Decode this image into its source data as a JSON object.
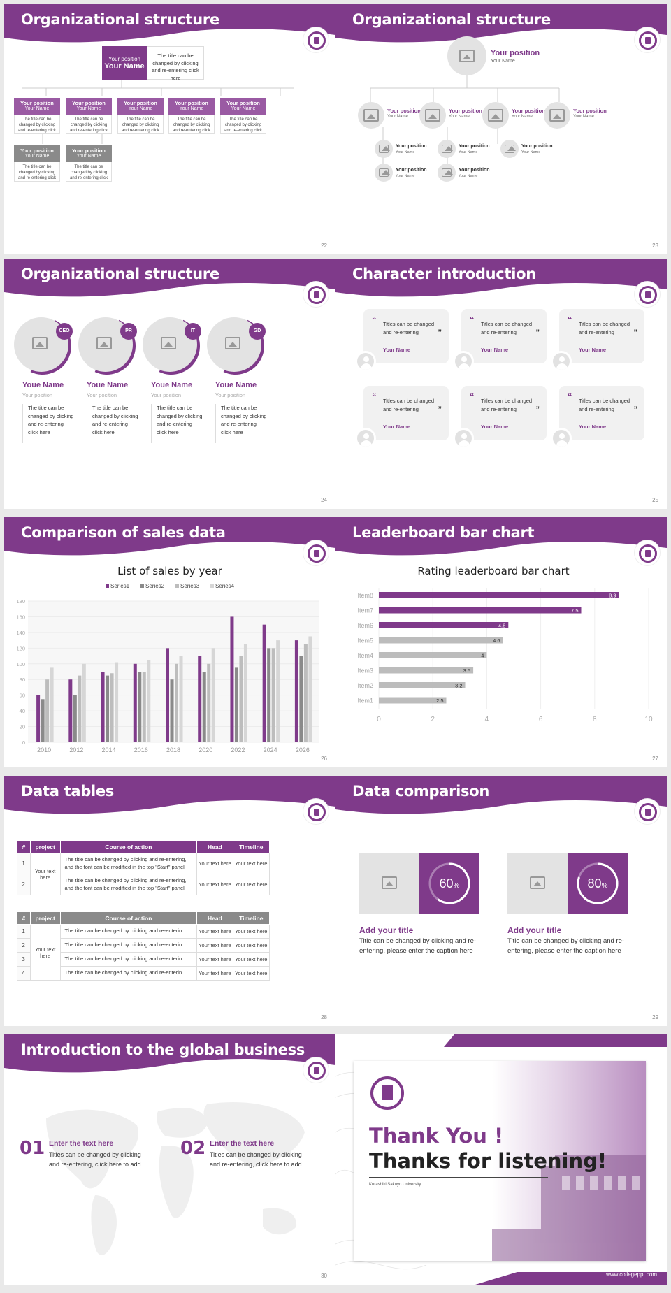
{
  "colors": {
    "primary": "#7f3a8a",
    "gray": "#8a8a8a",
    "light": "#e3e3e3"
  },
  "s22": {
    "title": "Organizational structure",
    "page": "22",
    "top": {
      "pos": "Your position",
      "name": "Your Name",
      "desc": "The title can be changed by clicking and re-entering click here"
    },
    "cards": [
      {
        "pos": "Your position",
        "name": "Your Name",
        "desc": "The title can be changed by clicking and re-entering click here"
      },
      {
        "pos": "Your position",
        "name": "Your Name",
        "desc": "The title can be changed by clicking and re-entering click here"
      },
      {
        "pos": "Your position",
        "name": "Your Name",
        "desc": "The title can be changed by clicking and re-entering click here"
      },
      {
        "pos": "Your position",
        "name": "Your Name",
        "desc": "The title can be changed by clicking and re-entering click here"
      },
      {
        "pos": "Your position",
        "name": "Your Name",
        "desc": "The title can be changed by clicking and re-entering click here"
      },
      {
        "pos": "Your position",
        "name": "Your Name",
        "desc": "The title can be changed by clicking and re-entering click here"
      },
      {
        "pos": "Your position",
        "name": "Your Name",
        "desc": "The title can be changed by clicking and re-entering click here"
      }
    ]
  },
  "s23": {
    "title": "Organizational structure",
    "page": "23",
    "top_pos": "Your position",
    "top_name": "Your Name",
    "pos": "Your position",
    "name": "Your Name"
  },
  "s24": {
    "title": "Organizational structure",
    "page": "24",
    "people": [
      {
        "tag": "CEO",
        "name": "Youe Name",
        "pos": "Your position",
        "desc": "The title can be changed by clicking and re-entering click here"
      },
      {
        "tag": "PR",
        "name": "Youe Name",
        "pos": "Your position",
        "desc": "The title can be changed by clicking and re-entering click here"
      },
      {
        "tag": "IT",
        "name": "Youe Name",
        "pos": "Your position",
        "desc": "The title can be changed by clicking and re-entering click here"
      },
      {
        "tag": "GD",
        "name": "Youe Name",
        "pos": "Your position",
        "desc": "The title can be changed by clicking and re-entering click here"
      }
    ]
  },
  "s25": {
    "title": "Character introduction",
    "page": "25",
    "quote": "Titles can be changed and re-entering",
    "name": "Your Name"
  },
  "s26": {
    "title": "Comparison of sales data",
    "page": "26"
  },
  "s27": {
    "title": "Leaderboard bar chart",
    "page": "27"
  },
  "s28": {
    "title": "Data tables",
    "page": "28",
    "t1": {
      "headers": [
        "#",
        "project",
        "Course of action",
        "Head",
        "Timeline"
      ],
      "merged": "Your text here",
      "rows": [
        {
          "n": "1",
          "c": "The title can be changed by clicking and re-entering, and the font can be modified in the top \"Start\" panel",
          "h": "Your text here",
          "t": "Your text here"
        },
        {
          "n": "2",
          "c": "The title can be changed by clicking and re-entering, and the font can be modified in the top \"Start\" panel",
          "h": "Your text here",
          "t": "Your text here"
        }
      ]
    },
    "t2": {
      "headers": [
        "#",
        "project",
        "Course of action",
        "Head",
        "Timeline"
      ],
      "merged": "Your text here",
      "rows": [
        {
          "n": "1",
          "c": "The title can be changed by clicking and re-enterin",
          "h": "Your text here",
          "t": "Your text here"
        },
        {
          "n": "2",
          "c": "The title can be changed by clicking and re-enterin",
          "h": "Your text here",
          "t": "Your text here"
        },
        {
          "n": "3",
          "c": "The title can be changed by clicking and re-enterin",
          "h": "Your text here",
          "t": "Your text here"
        },
        {
          "n": "4",
          "c": "The title can be changed by clicking and re-enterin",
          "h": "Your text here",
          "t": "Your text here"
        }
      ]
    }
  },
  "s29": {
    "title": "Data comparison",
    "page": "29",
    "items": [
      {
        "pct": "60",
        "unit": "%",
        "value": 60,
        "title": "Add your title",
        "desc": "Title can be changed by clicking and re-entering, please enter the caption here"
      },
      {
        "pct": "80",
        "unit": "%",
        "value": 80,
        "title": "Add your title",
        "desc": "Title can be changed by clicking and re-entering, please enter the caption here"
      }
    ]
  },
  "s30": {
    "title": "Introduction to the global business",
    "page": "30",
    "items": [
      {
        "num": "01",
        "head": "Enter the text here",
        "desc": "Titles can be changed by clicking and re-entering, click here to add"
      },
      {
        "num": "02",
        "head": "Enter the text here",
        "desc": "Titles can be changed by clicking and re-entering, click here to add"
      }
    ]
  },
  "s31": {
    "thanks1": "Thank You !",
    "thanks2": "Thanks for listening!",
    "univ": "Kurashiki Sakuyo University",
    "url": "www.collegeppt.com"
  },
  "chart_data": [
    {
      "type": "bar",
      "title": "List of sales by year",
      "categories": [
        "2010",
        "2012",
        "2014",
        "2016",
        "2018",
        "2020",
        "2022",
        "2024",
        "2026"
      ],
      "series": [
        {
          "name": "Series1",
          "values": [
            60,
            80,
            90,
            100,
            120,
            110,
            160,
            150,
            130
          ]
        },
        {
          "name": "Series2",
          "values": [
            55,
            60,
            85,
            90,
            80,
            90,
            95,
            120,
            110
          ]
        },
        {
          "name": "Series3",
          "values": [
            80,
            85,
            88,
            90,
            100,
            100,
            110,
            120,
            125
          ]
        },
        {
          "name": "Series4",
          "values": [
            95,
            100,
            102,
            105,
            110,
            120,
            125,
            130,
            135
          ]
        }
      ],
      "ylim": [
        0,
        180
      ],
      "yticks": [
        "0",
        "20",
        "40",
        "60",
        "80",
        "100",
        "120",
        "140",
        "160",
        "180"
      ],
      "legend": "top"
    },
    {
      "type": "bar",
      "orientation": "horizontal",
      "title": "Rating leaderboard bar chart",
      "categories": [
        "Item8",
        "Item7",
        "Item6",
        "Item5",
        "Item4",
        "Item3",
        "Item2",
        "Item1"
      ],
      "values": [
        8.9,
        7.5,
        4.8,
        4.6,
        4,
        3.5,
        3.2,
        2.5
      ],
      "labels": [
        "8.9",
        "7.5",
        "4.8",
        "4.6",
        "4",
        "3.5",
        "3.2",
        "2.5"
      ],
      "xlim": [
        0,
        10
      ],
      "xticks": [
        "0",
        "2",
        "4",
        "6",
        "8",
        "10"
      ]
    }
  ]
}
